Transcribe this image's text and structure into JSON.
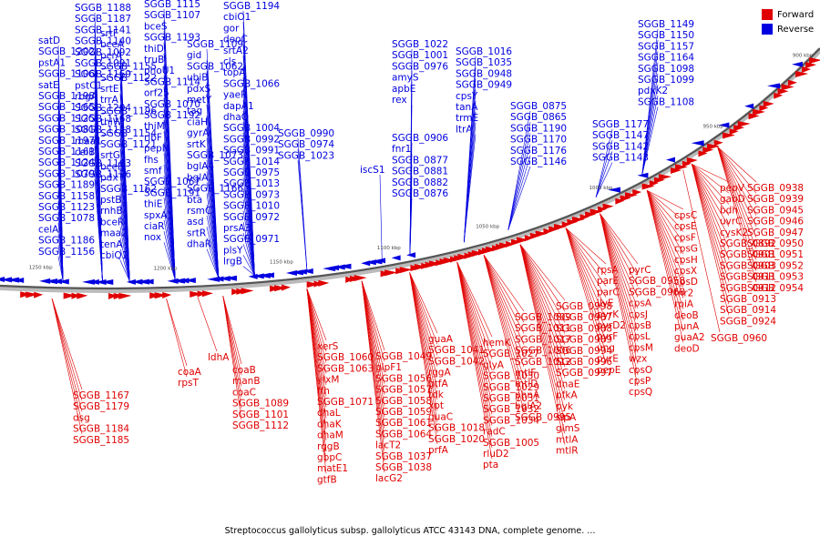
{
  "legend": [
    {
      "label": "Forward",
      "color": "#e00000"
    },
    {
      "label": "Reverse",
      "color": "#0000e0"
    }
  ],
  "caption": "Streptococcus gallolyticus subsp. gallolyticus ATCC 43143 DNA, complete genome. ...",
  "ticks": [
    "1250 kbp",
    "1200 kbp",
    "1150 kbp",
    "1100 kbp",
    "1050 kbp",
    "1000 kbp",
    "950 kbp",
    "900 kbp"
  ],
  "reverse_genes": [
    "SGGB_1188",
    "SGGB_1187",
    "SGGB_1141",
    "SGGB_1140",
    "SGGB_1092",
    "SGGB_1091",
    "SGGB_1169",
    "pstC1",
    "rbgA",
    "SGGB_1204",
    "SGGB_1168",
    "SGGB_1128",
    "maa1",
    "celB",
    "SGGB_1163",
    "SGGB_1126",
    "satD",
    "SGGB_1202",
    "pstA1",
    "SGGB_1106",
    "satE",
    "SGGB_1198",
    "SGGB_1165",
    "SGGB_1125",
    "SGGB_1081",
    "SGGB_1197",
    "SGGB_1161",
    "SGGB_1124",
    "SGGB_1079",
    "SGGB_1189",
    "SGGB_1158",
    "SGGB_1123",
    "SGGB_1078",
    "celA",
    "SGGB_1186",
    "SGGB_1156",
    "srtF",
    "bceA",
    "pcrA",
    "SGGB_1155",
    "SGGB_1122",
    "srtE",
    "trrA",
    "SGGB_1196",
    "thiW",
    "SGGB_1154",
    "SGGB_1121",
    "srtG",
    "bceB",
    "pdxT",
    "SGGB_1162",
    "pstB1",
    "rnhB",
    "bceR",
    "maa2",
    "tenA",
    "cbiQ1",
    "SGGB_1115",
    "SGGB_1107",
    "bceS",
    "SGGB_1193",
    "thiD",
    "truB",
    "phoU1",
    "SGGB_1114",
    "orf25",
    "SGGB_1070",
    "SGGB_1192",
    "thiM",
    "ribF",
    "pepN",
    "fhs",
    "smf",
    "SGGB_1067",
    "SGGB_1191",
    "thiE",
    "spxA1",
    "ciaR",
    "nox",
    "SGGB_1109",
    "gid",
    "SGGB_1062",
    "ubiB",
    "pdxS",
    "metY",
    "tag",
    "ciaH",
    "gyrA",
    "srtK",
    "SGGB_1073",
    "bglA4",
    "bglA3",
    "SGGB_1166",
    "bta",
    "rsmC",
    "asd",
    "srtR",
    "dhaR",
    "SGGB_1194",
    "cbiO1",
    "gor",
    "deoC",
    "srtA2",
    "cls",
    "topA",
    "SGGB_1066",
    "yaeR",
    "dapA1",
    "dhaQ",
    "SGGB_1004",
    "SGGB_0992",
    "SGGB_0991",
    "SGGB_1014",
    "SGGB_0975",
    "SGGB_1013",
    "SGGB_0973",
    "SGGB_1010",
    "SGGB_0972",
    "prsA3",
    "SGGB_0971",
    "plsY",
    "lrgB",
    "SGGB_0990",
    "SGGB_0974",
    "SGGB_1023",
    "iscS1",
    "SGGB_1022",
    "SGGB_1001",
    "SGGB_0976",
    "amyS",
    "apbE",
    "rex",
    "SGGB_1016",
    "SGGB_1035",
    "SGGB_0948",
    "SGGB_0949",
    "cpsY",
    "tanA",
    "trmE",
    "ltrA",
    "SGGB_0906",
    "fnr1",
    "SGGB_0877",
    "SGGB_0881",
    "SGGB_0882",
    "SGGB_0876",
    "SGGB_0875",
    "SGGB_0865",
    "SGGB_1190",
    "SGGB_1170",
    "SGGB_1176",
    "SGGB_1146",
    "SGGB_1177",
    "SGGB_1147",
    "SGGB_1142",
    "SGGB_1143",
    "SGGB_1149",
    "SGGB_1150",
    "SGGB_1157",
    "SGGB_1164",
    "SGGB_1098",
    "SGGB_1099",
    "pdxK2",
    "SGGB_1108"
  ],
  "forward_genes": [
    "coaA",
    "rpsT",
    "SGGB_1167",
    "SGGB_1179",
    "dsg",
    "SGGB_1184",
    "SGGB_1185",
    "ldhA",
    "coaB",
    "manB",
    "coaC",
    "SGGB_1089",
    "SGGB_1101",
    "SGGB_1112",
    "xerS",
    "SGGB_1060",
    "SGGB_1063",
    "ylxM",
    "ffh",
    "SGGB_1071",
    "dhaL",
    "dhaK",
    "dhaM",
    "rggB",
    "gbpC",
    "matE1",
    "gtfB",
    "SGGB_1049",
    "glpF1",
    "SGGB_1056",
    "SGGB_1057",
    "SGGB_1058",
    "SGGB_1059",
    "SGGB_1061",
    "SGGB_1064",
    "lacT2",
    "SGGB_1037",
    "SGGB_1038",
    "lacG2",
    "guaA",
    "SGGB_1041",
    "SGGB_1042",
    "rggA",
    "gtfA",
    "tdk",
    "xpt",
    "guaC",
    "SGGB_1018",
    "SGGB_1020",
    "prfA",
    "hemK",
    "SGGB_1027",
    "glyA",
    "SGGB_1030",
    "SGGB_1029",
    "SGGB_1031",
    "SGGB_1032",
    "SGGB_1034",
    "radC",
    "SGGB_1005",
    "rluD2",
    "pta",
    "SGGB_1009",
    "SGGB_1011",
    "SGGB_1017",
    "SGGB_1006",
    "SGGB_1012",
    "mtlF",
    "mtlD",
    "phnA",
    "bglA2",
    "SGGB_0995",
    "SGGB_0998",
    "SGGB_0987",
    "SGGB_0988",
    "SGGB_0989",
    "SGGB_0994",
    "SGGB_0996",
    "SGGB_0997",
    "dnaE",
    "pfkA",
    "pyk",
    "sipA",
    "glmS",
    "mtlA",
    "mtlR",
    "rpsA",
    "parE",
    "parC",
    "ilvE",
    "pyrK",
    "pyrD2",
    "pyrF",
    "ung",
    "pyrE",
    "pepE",
    "pyrC",
    "SGGB_0958",
    "SGGB_0968",
    "cpsA",
    "cpsJ",
    "cpsB",
    "cpsL",
    "cpsM",
    "wzx",
    "cpsO",
    "cpsP",
    "cpsQ",
    "cpsC",
    "cpsE",
    "cpsF",
    "cpsG",
    "cpsH",
    "cpsX",
    "cpsD",
    "fnr2",
    "rpiA",
    "deoB",
    "punA",
    "guaA2",
    "deoD",
    "pepV",
    "gabD",
    "bdh",
    "uvrC",
    "cysK2",
    "SGGB_0892",
    "SGGB_0901",
    "SGGB_0903",
    "SGGB_0911",
    "SGGB_0912",
    "SGGB_0913",
    "SGGB_0914",
    "SGGB_0924",
    "SGGB_0938",
    "SGGB_0939",
    "SGGB_0945",
    "SGGB_0946",
    "SGGB_0947",
    "SGGB_0950",
    "SGGB_0951",
    "SGGB_0952",
    "SGGB_0953",
    "SGGB_0954",
    "SGGB_0960"
  ]
}
